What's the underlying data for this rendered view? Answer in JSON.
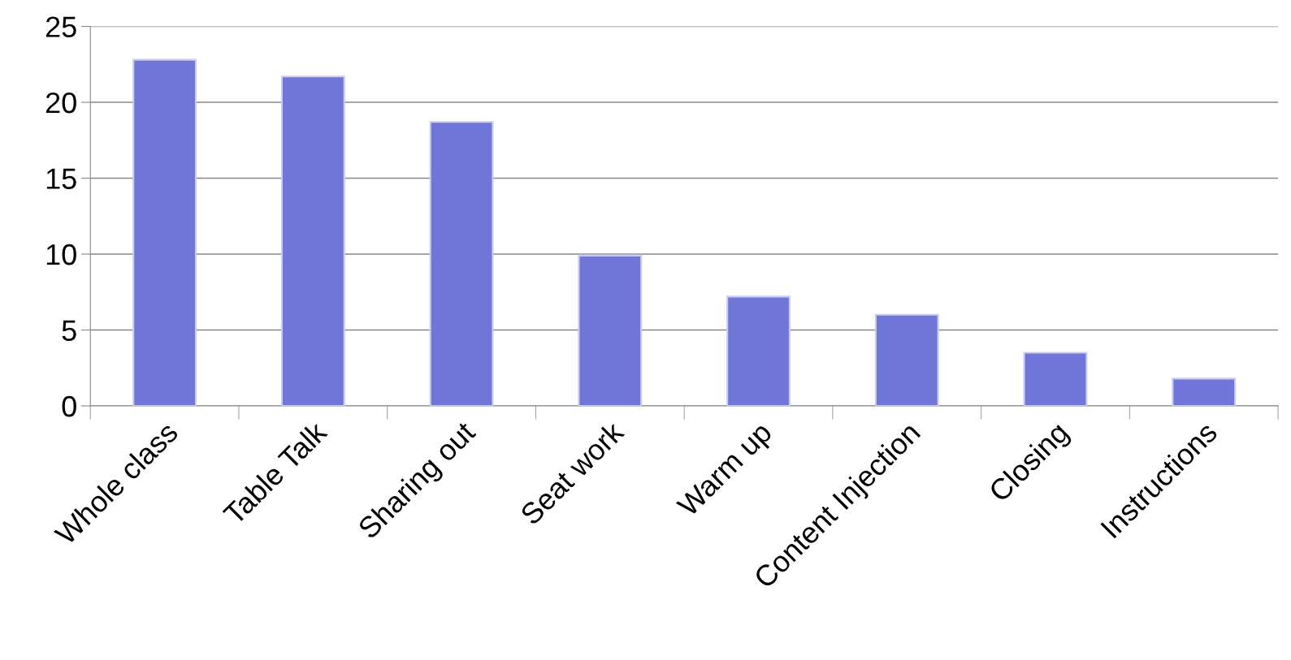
{
  "chart_data": {
    "type": "bar",
    "categories": [
      "Whole class",
      "Table Talk",
      "Sharing out",
      "Seat work",
      "Warm up",
      "Content Injection",
      "Closing",
      "Instructions"
    ],
    "values": [
      22.8,
      21.7,
      18.7,
      9.9,
      7.2,
      6.0,
      3.5,
      1.8
    ],
    "color": "#6f76d8",
    "ylim": [
      0,
      25
    ],
    "yticks": [
      0,
      5,
      10,
      15,
      20,
      25
    ],
    "grid": "y"
  }
}
